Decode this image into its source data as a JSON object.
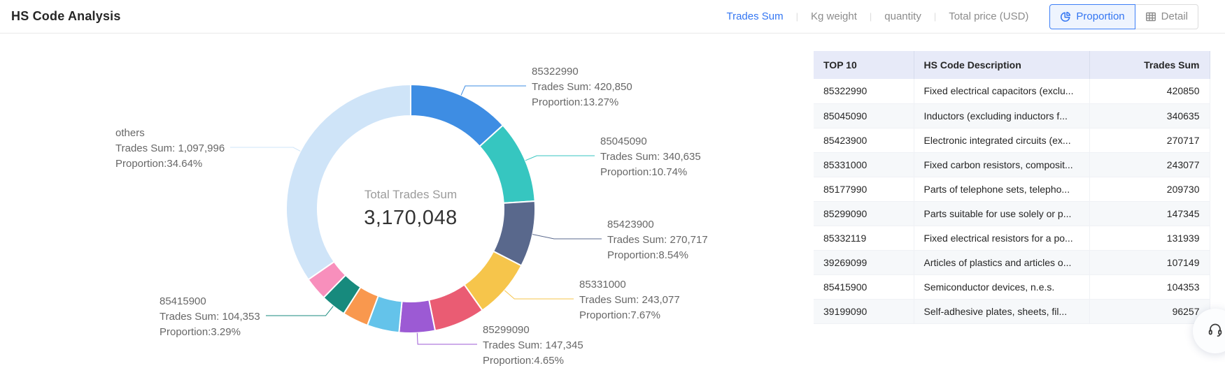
{
  "header": {
    "title": "HS Code Analysis",
    "metric_tabs": [
      {
        "label": "Trades Sum",
        "active": true
      },
      {
        "label": "Kg weight",
        "active": false
      },
      {
        "label": "quantity",
        "active": false
      },
      {
        "label": "Total price (USD)",
        "active": false
      }
    ],
    "view_toggle": {
      "proportion": {
        "label": "Proportion",
        "active": true
      },
      "detail": {
        "label": "Detail",
        "active": false
      }
    }
  },
  "chart_data": {
    "type": "pie",
    "subtype": "donut",
    "center_label": "Total Trades Sum",
    "center_value": "3,170,048",
    "total": 3170048,
    "legend_position": "none",
    "slices": [
      {
        "name": "85322990",
        "value": 420850,
        "proportion_pct": 13.27,
        "color": "#3E8DE3",
        "label_visible": true,
        "value_label": "Trades Sum: 420,850",
        "proportion_label": "Proportion:13.27%"
      },
      {
        "name": "85045090",
        "value": 340635,
        "proportion_pct": 10.74,
        "color": "#36C6C0",
        "label_visible": true,
        "value_label": "Trades Sum: 340,635",
        "proportion_label": "Proportion:10.74%"
      },
      {
        "name": "85423900",
        "value": 270717,
        "proportion_pct": 8.54,
        "color": "#59688C",
        "label_visible": true,
        "value_label": "Trades Sum: 270,717",
        "proportion_label": "Proportion:8.54%"
      },
      {
        "name": "85331000",
        "value": 243077,
        "proportion_pct": 7.67,
        "color": "#F6C54B",
        "label_visible": true,
        "value_label": "Trades Sum: 243,077",
        "proportion_label": "Proportion:7.67%"
      },
      {
        "name": "85177990",
        "value": 209730,
        "proportion_pct": 6.62,
        "color": "#EA5C73",
        "label_visible": false
      },
      {
        "name": "85299090",
        "value": 147345,
        "proportion_pct": 4.65,
        "color": "#9C5AD4",
        "label_visible": true,
        "value_label": "Trades Sum: 147,345",
        "proportion_label": "Proportion:4.65%"
      },
      {
        "name": "85332119",
        "value": 131939,
        "proportion_pct": 4.16,
        "color": "#64C3EA",
        "label_visible": false
      },
      {
        "name": "39269099",
        "value": 107149,
        "proportion_pct": 3.38,
        "color": "#F9984E",
        "label_visible": false
      },
      {
        "name": "85415900",
        "value": 104353,
        "proportion_pct": 3.29,
        "color": "#178A7D",
        "label_visible": true,
        "value_label": "Trades Sum: 104,353",
        "proportion_label": "Proportion:3.29%"
      },
      {
        "name": "39199090",
        "value": 96257,
        "proportion_pct": 3.04,
        "color": "#F88FBC",
        "label_visible": false
      },
      {
        "name": "others",
        "value": 1097996,
        "proportion_pct": 34.64,
        "color": "#CFE4F8",
        "label_visible": true,
        "value_label": "Trades Sum: 1,097,996",
        "proportion_label": "Proportion:34.64%"
      }
    ]
  },
  "table": {
    "columns": [
      "TOP 10",
      "HS Code Description",
      "Trades Sum"
    ],
    "rows": [
      {
        "code": "85322990",
        "description": "Fixed electrical capacitors (exclu...",
        "value": "420850"
      },
      {
        "code": "85045090",
        "description": "Inductors (excluding inductors f...",
        "value": "340635"
      },
      {
        "code": "85423900",
        "description": "Electronic integrated circuits (ex...",
        "value": "270717"
      },
      {
        "code": "85331000",
        "description": "Fixed carbon resistors, composit...",
        "value": "243077"
      },
      {
        "code": "85177990",
        "description": "Parts of telephone sets, telepho...",
        "value": "209730"
      },
      {
        "code": "85299090",
        "description": "Parts suitable for use solely or p...",
        "value": "147345"
      },
      {
        "code": "85332119",
        "description": "Fixed electrical resistors for a po...",
        "value": "131939"
      },
      {
        "code": "39269099",
        "description": "Articles of plastics and articles o...",
        "value": "107149"
      },
      {
        "code": "85415900",
        "description": "Semiconductor devices, n.e.s.",
        "value": "104353"
      },
      {
        "code": "39199090",
        "description": "Self-adhesive plates, sheets, fil...",
        "value": "96257"
      }
    ]
  },
  "floating": {
    "support_icon": "headset-icon"
  }
}
